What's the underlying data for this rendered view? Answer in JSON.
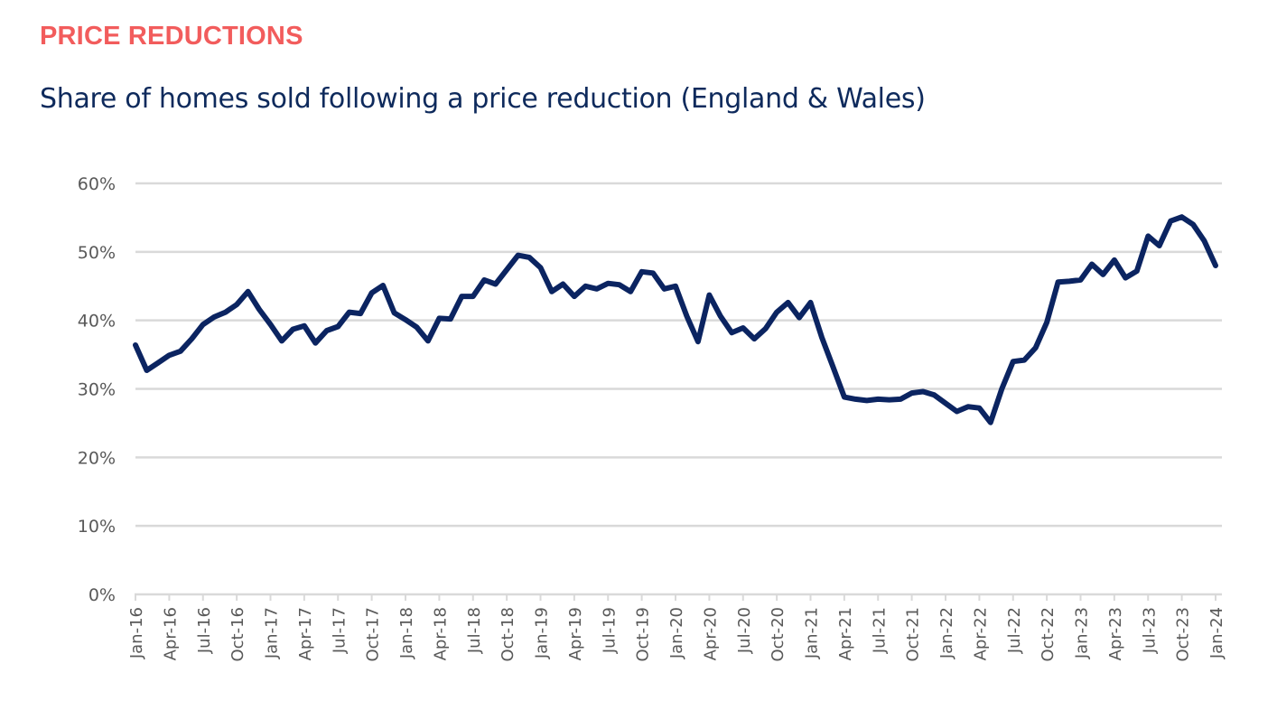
{
  "header": {
    "section_title": "PRICE REDUCTIONS",
    "chart_title": "Share of homes sold following a price reduction (England & Wales)"
  },
  "colors": {
    "section_title": "#f25c5c",
    "chart_title": "#0e2a5c",
    "series_line": "#0b2461",
    "gridline": "#d9d9d9",
    "axis_text": "#595959"
  },
  "chart_data": {
    "type": "line",
    "title": "Share of homes sold following a price reduction (England & Wales)",
    "xlabel": "",
    "ylabel": "",
    "ylim": [
      0,
      60
    ],
    "yticks": [
      "0%",
      "10%",
      "20%",
      "30%",
      "40%",
      "50%",
      "60%"
    ],
    "ytick_values": [
      0,
      10,
      20,
      30,
      40,
      50,
      60
    ],
    "grid": true,
    "legend": "none",
    "x_tick_labels": [
      "Jan-16",
      "Apr-16",
      "Jul-16",
      "Oct-16",
      "Jan-17",
      "Apr-17",
      "Jul-17",
      "Oct-17",
      "Jan-18",
      "Apr-18",
      "Jul-18",
      "Oct-18",
      "Jan-19",
      "Apr-19",
      "Jul-19",
      "Oct-19",
      "Jan-20",
      "Apr-20",
      "Jul-20",
      "Oct-20",
      "Jan-21",
      "Apr-21",
      "Jul-21",
      "Oct-21",
      "Jan-22",
      "Apr-22",
      "Jul-22",
      "Oct-22",
      "Jan-23",
      "Apr-23",
      "Jul-23",
      "Oct-23",
      "Jan-24"
    ],
    "x_start": "Jan-16",
    "x_frequency": "monthly",
    "series": [
      {
        "name": "Share of homes sold following a price reduction",
        "unit": "%",
        "values": [
          36.4,
          32.7,
          33.8,
          34.9,
          35.5,
          37.3,
          39.4,
          40.5,
          41.2,
          42.3,
          44.2,
          41.6,
          39.4,
          37.0,
          38.7,
          39.2,
          36.7,
          38.5,
          39.1,
          41.2,
          41.0,
          44.0,
          45.1,
          41.1,
          40.1,
          39.0,
          37.0,
          40.3,
          40.2,
          43.5,
          43.5,
          45.9,
          45.3,
          47.4,
          49.5,
          49.2,
          47.7,
          44.2,
          45.3,
          43.5,
          45.0,
          44.6,
          45.4,
          45.2,
          44.2,
          47.1,
          46.9,
          44.6,
          45.0,
          40.6,
          36.9,
          43.7,
          40.6,
          38.2,
          38.9,
          37.3,
          38.8,
          41.2,
          42.6,
          40.4,
          42.6,
          37.5,
          33.2,
          28.8,
          28.5,
          28.3,
          28.5,
          28.4,
          28.5,
          29.4,
          29.6,
          29.1,
          27.9,
          26.7,
          27.4,
          27.2,
          25.1,
          30.0,
          34.0,
          34.2,
          36.0,
          39.7,
          45.6,
          45.7,
          45.9,
          48.2,
          46.7,
          48.8,
          46.2,
          47.2,
          52.3,
          50.9,
          54.5,
          55.1,
          54.0,
          51.6,
          48.0
        ]
      }
    ]
  }
}
